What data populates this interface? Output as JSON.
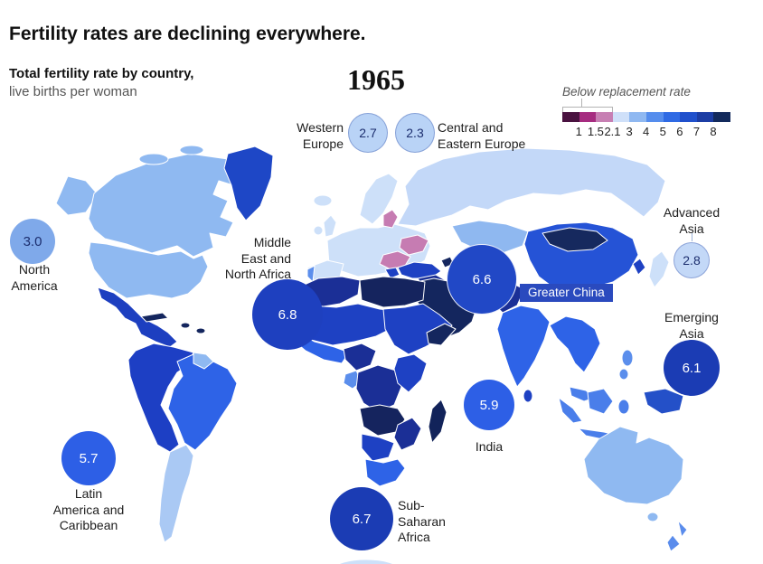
{
  "header": {
    "title": "Fertility rates are declining everywhere.",
    "subtitle_bold": "Total fertility rate by country,",
    "subtitle_light": "live births per woman",
    "year": "1965"
  },
  "chart_data": {
    "type": "choropleth_map_with_bubbles",
    "title": "Fertility rates are declining everywhere.",
    "subtitle": "Total fertility rate by country, live births per woman",
    "year": "1965",
    "unit": "live births per woman",
    "legend": {
      "label": "Below replacement rate",
      "replacement_rate": 2.1,
      "scale_ticks": [
        "1",
        "1.5",
        "2.1",
        "3",
        "4",
        "5",
        "6",
        "7",
        "8"
      ],
      "colors": [
        "#4a1240",
        "#a62c80",
        "#c77fb3",
        "#cfe0f9",
        "#8fb8f1",
        "#558ded",
        "#2f6ae4",
        "#2050cc",
        "#1c3da4",
        "#132a5c"
      ]
    },
    "regions": [
      {
        "name": "Western Europe",
        "value": 2.7,
        "display": "2.7",
        "label_lines": [
          "Western",
          "Europe"
        ],
        "bubble_color": "#b9d3f6"
      },
      {
        "name": "Central and Eastern Europe",
        "value": 2.3,
        "display": "2.3",
        "label_lines": [
          "Central and",
          "Eastern Europe"
        ],
        "bubble_color": "#b9d3f6"
      },
      {
        "name": "North America",
        "value": 3.0,
        "display": "3.0",
        "label_lines": [
          "North",
          "America"
        ],
        "bubble_color": "#7fa9ea"
      },
      {
        "name": "Middle East and North Africa",
        "value": 6.8,
        "display": "6.8",
        "label_lines": [
          "Middle",
          "East and",
          "North Africa"
        ],
        "bubble_color": "#1e40bf"
      },
      {
        "name": "Greater China",
        "value": 6.6,
        "display": "6.6",
        "label_lines": [
          "Greater China"
        ],
        "bubble_color": "#2148c6"
      },
      {
        "name": "Advanced Asia",
        "value": 2.8,
        "display": "2.8",
        "label_lines": [
          "Advanced",
          "Asia"
        ],
        "bubble_color": "#c3d8f7"
      },
      {
        "name": "Emerging Asia",
        "value": 6.1,
        "display": "6.1",
        "label_lines": [
          "Emerging",
          "Asia"
        ],
        "bubble_color": "#1b3cb4"
      },
      {
        "name": "India",
        "value": 5.9,
        "display": "5.9",
        "label_lines": [
          "India"
        ],
        "bubble_color": "#2d5fe6"
      },
      {
        "name": "Latin America and Caribbean",
        "value": 5.7,
        "display": "5.7",
        "label_lines": [
          "Latin",
          "America and",
          "Caribbean"
        ],
        "bubble_color": "#2d5fe6"
      },
      {
        "name": "Sub-Saharan Africa",
        "value": 6.7,
        "display": "6.7",
        "label_lines": [
          "Sub-",
          "Saharan",
          "Africa"
        ],
        "bubble_color": "#1b3cb4"
      }
    ]
  }
}
